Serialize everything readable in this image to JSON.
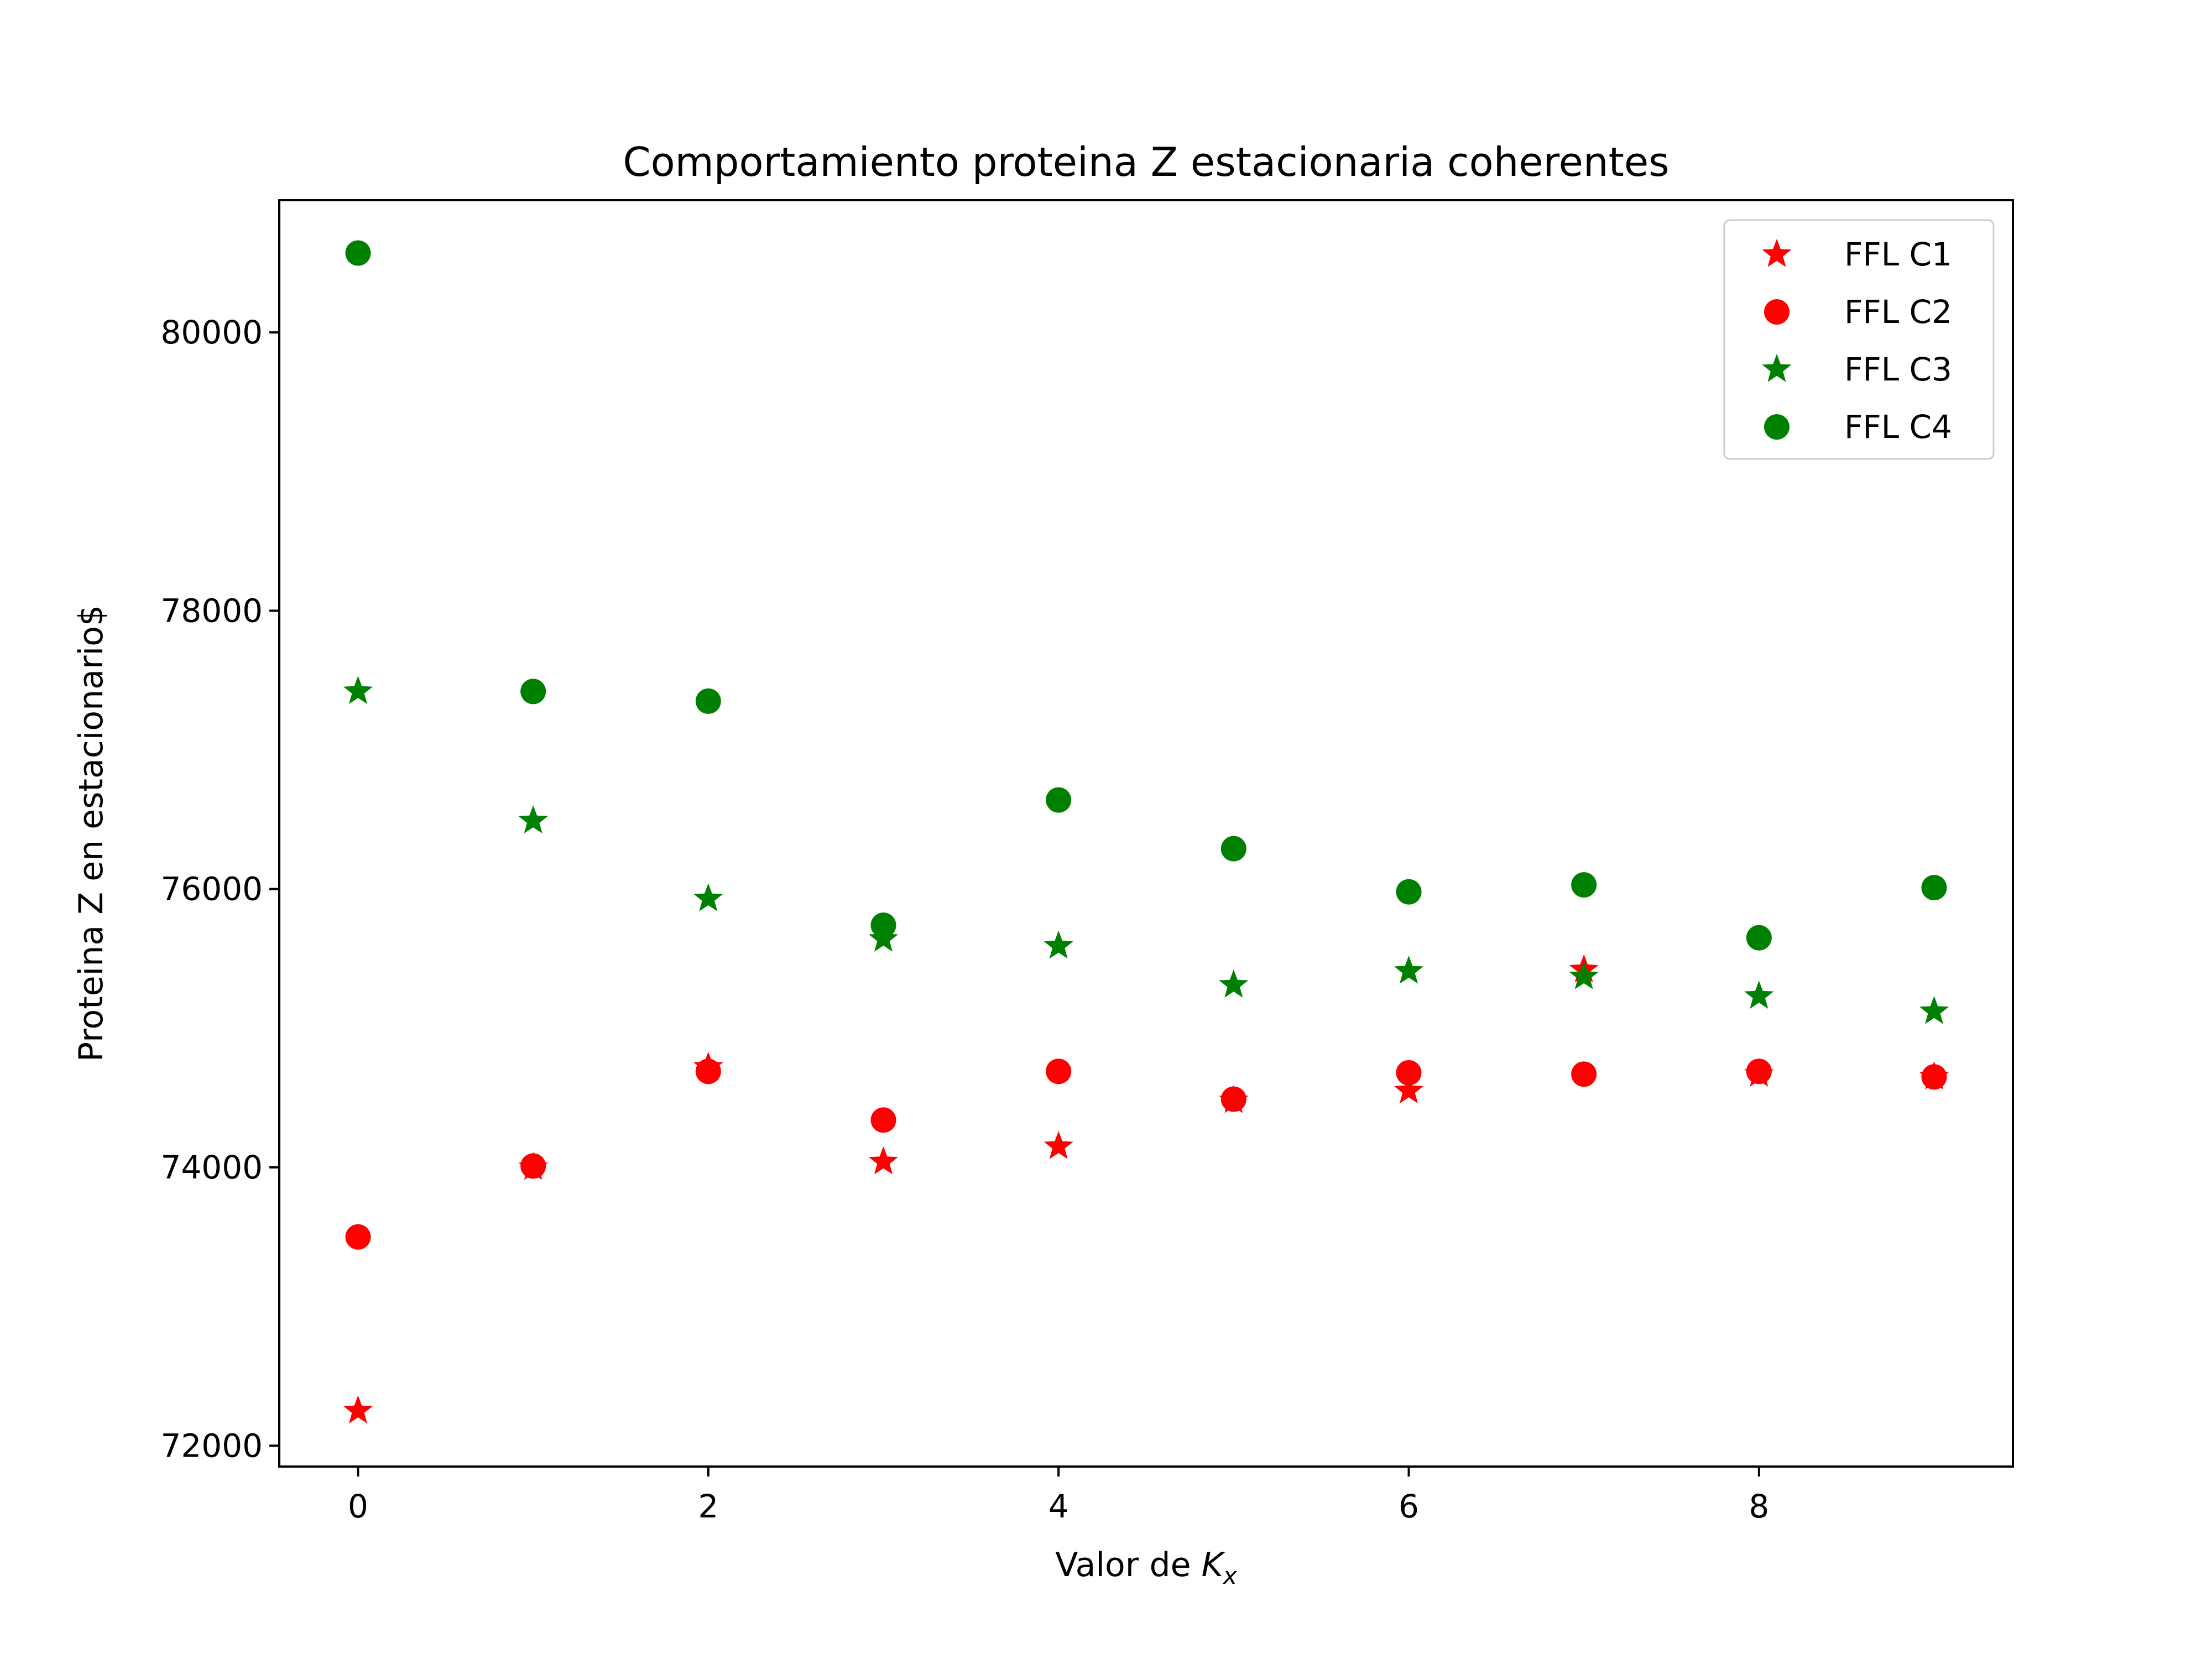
{
  "chart_data": {
    "type": "scatter",
    "title": "Comportamiento proteina Z estacionaria coherentes",
    "xlabel_prefix": "Valor de ",
    "xlabel_var": "K",
    "xlabel_sub": "x",
    "ylabel": "Proteina Z en estacionario$",
    "xlim": [
      -0.45,
      9.45
    ],
    "ylim": [
      71850,
      80950
    ],
    "xticks": [
      0,
      2,
      4,
      6,
      8
    ],
    "yticks": [
      72000,
      74000,
      76000,
      78000,
      80000
    ],
    "x": [
      0,
      1,
      2,
      3,
      4,
      5,
      6,
      7,
      8,
      9
    ],
    "legend_position": "top-right",
    "grid": false,
    "series": [
      {
        "name": "FFL C1",
        "marker": "star",
        "color": "#ff0000",
        "values": [
          72250,
          74000,
          74720,
          74040,
          74150,
          74480,
          74550,
          75420,
          74670,
          74650
        ]
      },
      {
        "name": "FFL C2",
        "marker": "circle",
        "color": "#ff0000",
        "values": [
          73500,
          74010,
          74690,
          74340,
          74690,
          74490,
          74680,
          74670,
          74690,
          74650
        ]
      },
      {
        "name": "FFL C3",
        "marker": "star",
        "color": "#008000",
        "values": [
          77420,
          76490,
          75930,
          75640,
          75590,
          75310,
          75410,
          75370,
          75230,
          75120
        ]
      },
      {
        "name": "FFL C4",
        "marker": "circle",
        "color": "#008000",
        "values": [
          80570,
          77420,
          77350,
          75740,
          76640,
          76290,
          75980,
          76030,
          75650,
          76010
        ]
      }
    ]
  }
}
